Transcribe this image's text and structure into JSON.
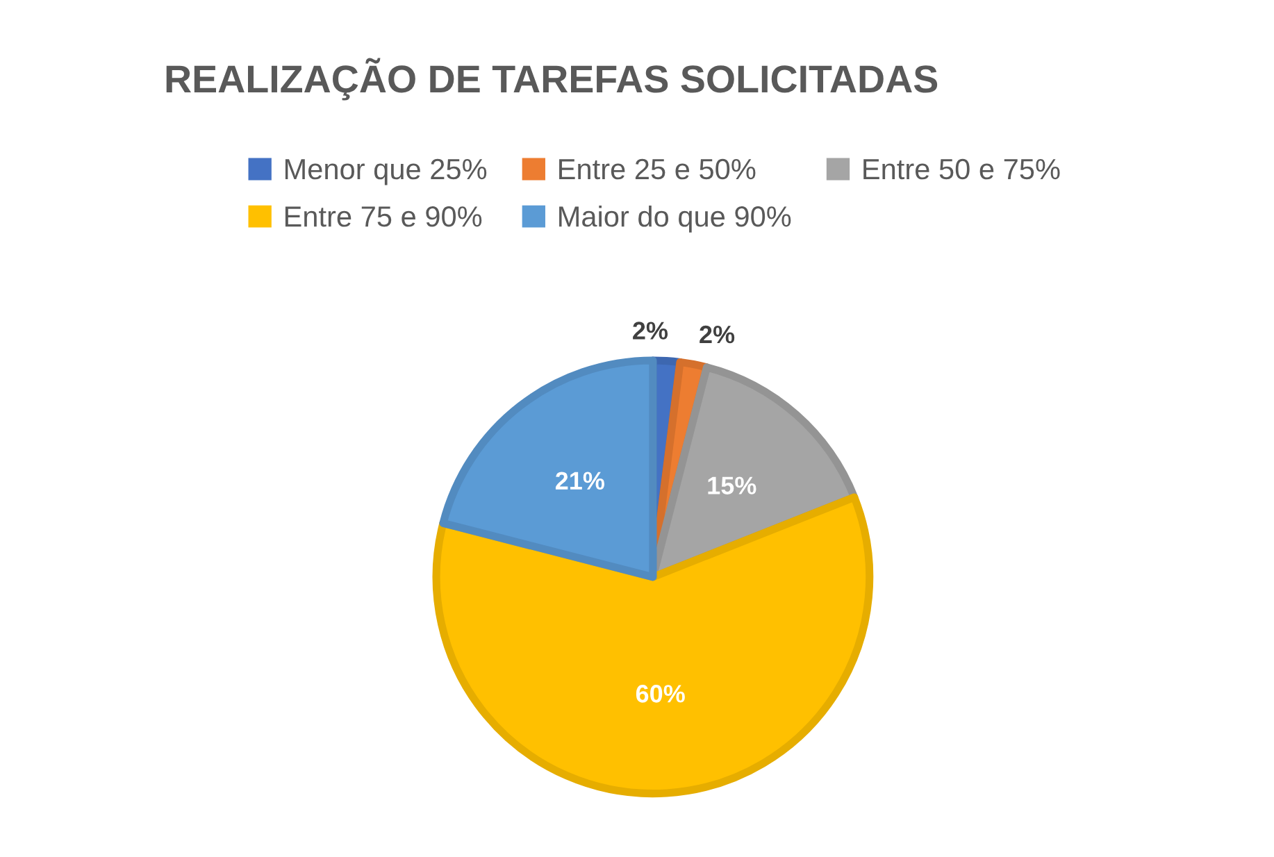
{
  "chart_data": {
    "type": "pie",
    "title": "REALIZAÇÃO DE TAREFAS SOLICITADAS",
    "categories": [
      "Menor que 25%",
      "Entre 25 e 50%",
      "Entre 50 e 75%",
      "Entre 75 e 90%",
      "Maior do que 90%"
    ],
    "values": [
      2,
      2,
      15,
      60,
      21
    ],
    "colors": [
      "#4472c4",
      "#ed7d31",
      "#a5a5a5",
      "#ffc000",
      "#5b9bd5"
    ],
    "value_labels": [
      "2%",
      "2%",
      "15%",
      "60%",
      "21%"
    ],
    "legend": "top"
  }
}
